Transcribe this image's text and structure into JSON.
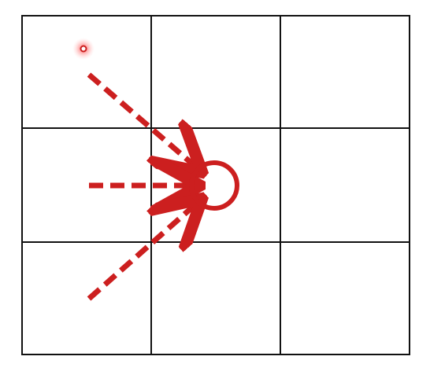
{
  "diagram": {
    "grid": {
      "rows": 3,
      "columns": 3
    },
    "target": {
      "row": 2,
      "column": 2,
      "shape": "ring"
    },
    "cursor_marker": {
      "row": 1,
      "column": 1,
      "shape": "glowing-dot"
    },
    "arrows": [
      {
        "from": "top-left",
        "to": "target"
      },
      {
        "from": "left",
        "to": "target"
      },
      {
        "from": "bottom-left",
        "to": "target"
      }
    ],
    "colors": {
      "grid_line": "#111111",
      "accent": "#cc1f1f",
      "cursor_glow": "#ff8a8a",
      "background": "#ffffff"
    }
  }
}
